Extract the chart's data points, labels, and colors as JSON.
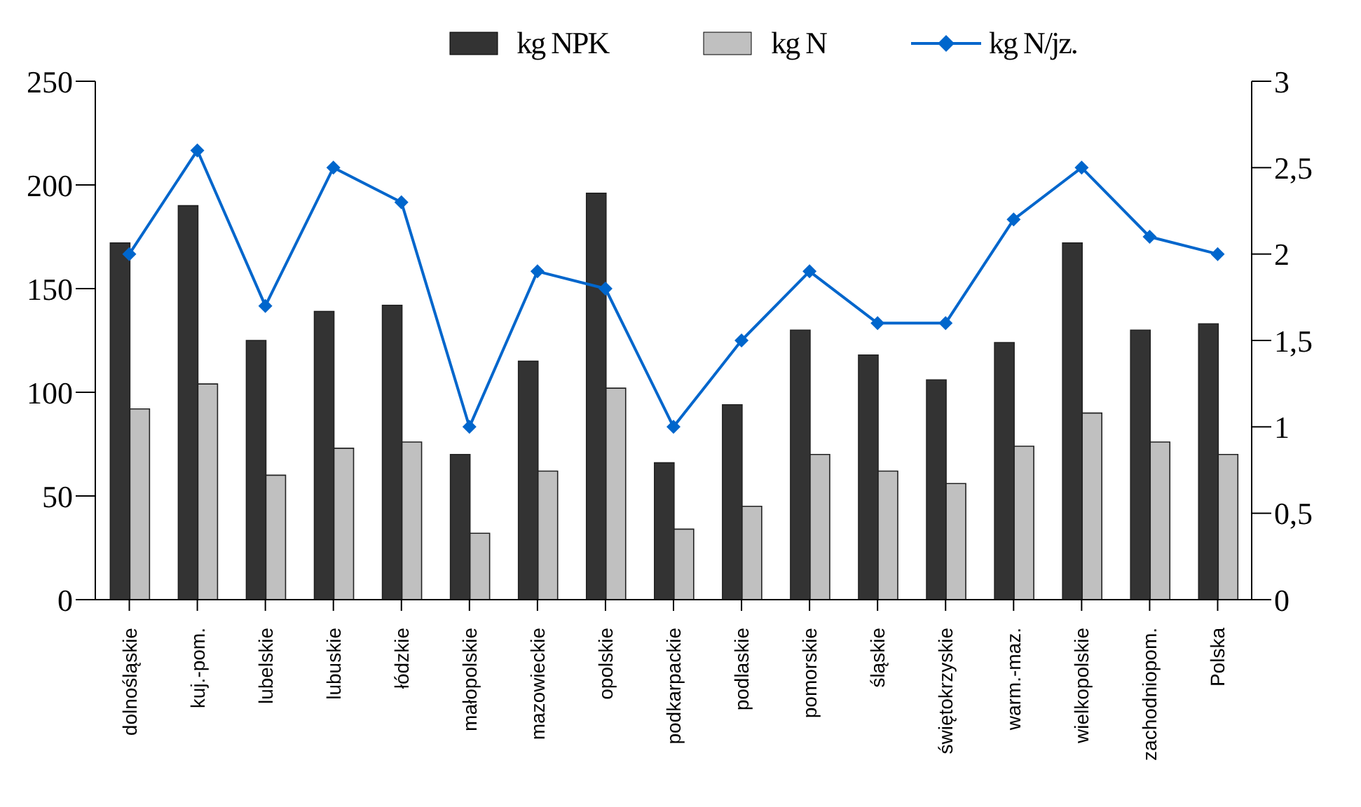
{
  "chart_data": {
    "type": "bar",
    "categories": [
      "dolnośląskie",
      "kuj.-pom.",
      "lubelskie",
      "lubuskie",
      "łódzkie",
      "małopolskie",
      "mazowieckie",
      "opolskie",
      "podkarpackie",
      "podlaskie",
      "pomorskie",
      "śląskie",
      "świętokrzyskie",
      "warm.-maz.",
      "wielkopolskie",
      "zachodniopom.",
      "Polska"
    ],
    "series": [
      {
        "name": "kg NPK",
        "color": "#333333",
        "values": [
          172,
          190,
          125,
          139,
          142,
          70,
          115,
          196,
          66,
          94,
          130,
          118,
          106,
          124,
          172,
          130,
          133
        ]
      },
      {
        "name": "kg N",
        "color": "#c0c0c0",
        "values": [
          92,
          104,
          60,
          73,
          76,
          32,
          62,
          102,
          34,
          45,
          70,
          62,
          56,
          74,
          90,
          76,
          70
        ]
      },
      {
        "name": "kg N/jz.",
        "type": "line",
        "axis": "y2",
        "color": "#0066cc",
        "marker": "diamond",
        "values": [
          2.0,
          2.6,
          1.7,
          2.5,
          2.3,
          1.0,
          1.9,
          1.8,
          1.0,
          1.5,
          1.9,
          1.6,
          1.6,
          2.2,
          2.5,
          2.1,
          2.0
        ]
      }
    ],
    "ylim": [
      0,
      250
    ],
    "yticks": [
      0,
      50,
      100,
      150,
      200,
      250
    ],
    "y2lim": [
      0,
      3
    ],
    "y2ticks": [
      0,
      {
        "value": 0.5,
        "label": "0,5"
      },
      1,
      {
        "value": 1.5,
        "label": "1,5"
      },
      2,
      {
        "value": 2.5,
        "label": "2,5"
      },
      3
    ],
    "legend": "top"
  }
}
